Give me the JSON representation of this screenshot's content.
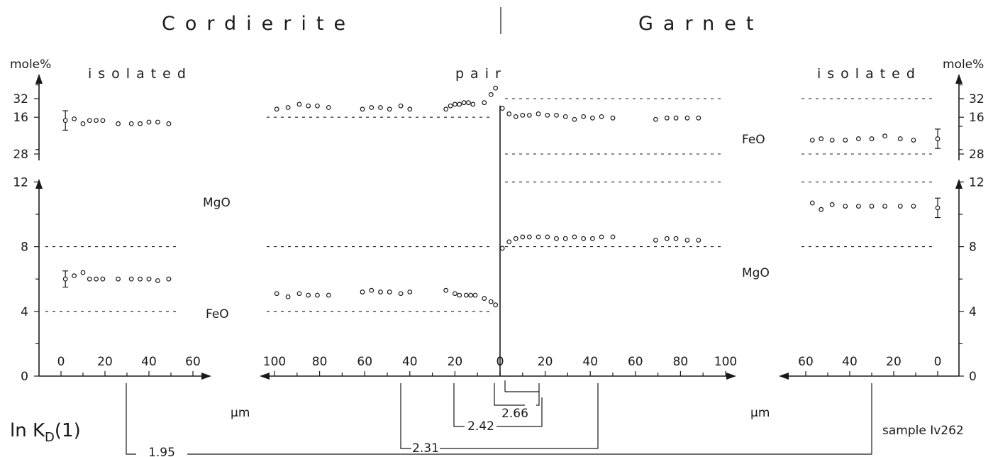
{
  "chart_data": {
    "type": "scatter",
    "title_left": "Cordierite",
    "title_right": "Garnet",
    "sample_label": "sample Iv262",
    "yunit": "mole%",
    "xunit": "µm",
    "yticks_upper": [
      "32",
      "28"
    ],
    "yticks_lower": [
      "16",
      "12",
      "8",
      "4",
      "0"
    ],
    "lnkd_label": {
      "main": "ln K",
      "sub": "D",
      "tail": "(1)"
    },
    "panels": [
      {
        "id": "crd-isolated",
        "title": "isolated",
        "xlim": [
          0,
          60
        ],
        "xticks": [
          "0",
          "20",
          "40",
          "60"
        ],
        "series": [
          {
            "name": "MgO",
            "x": [
              2,
              6,
              10,
              13,
              16,
              19,
              26,
              32,
              36,
              40,
              44,
              49
            ],
            "y": [
              15.8,
              15.9,
              15.6,
              15.8,
              15.8,
              15.8,
              15.6,
              15.6,
              15.6,
              15.7,
              15.7,
              15.6
            ],
            "error_bar_at": 2,
            "error": 0.6
          },
          {
            "name": "FeO",
            "x": [
              2,
              6,
              10,
              13,
              16,
              19,
              26,
              32,
              36,
              40,
              44,
              49
            ],
            "y": [
              6.0,
              6.2,
              6.4,
              6.0,
              6.0,
              6.0,
              6.0,
              6.0,
              6.0,
              6.0,
              5.9,
              6.0
            ],
            "error_bar_at": 2,
            "error": 0.5
          }
        ],
        "ref_lines": [
          8,
          4
        ]
      },
      {
        "id": "crd-pair",
        "title": "pair",
        "xlim": [
          100,
          0
        ],
        "xticks": [
          "100",
          "80",
          "60",
          "40",
          "20",
          "0"
        ],
        "series": [
          {
            "name": "MgO",
            "x": [
              99,
              94,
              89,
              85,
              81,
              76,
              61,
              57,
              53,
              49,
              44,
              40,
              24,
              22,
              20,
              18,
              16,
              14,
              12,
              7,
              4,
              2
            ],
            "y": [
              16.5,
              16.6,
              16.8,
              16.7,
              16.7,
              16.6,
              16.5,
              16.6,
              16.6,
              16.5,
              16.7,
              16.5,
              16.5,
              16.7,
              16.8,
              16.8,
              16.9,
              16.9,
              16.8,
              16.9,
              17.4,
              17.8
            ]
          },
          {
            "name": "FeO",
            "x": [
              99,
              94,
              89,
              85,
              81,
              76,
              61,
              57,
              53,
              49,
              44,
              40,
              24,
              20,
              18,
              15,
              13,
              11,
              7,
              4,
              2
            ],
            "y": [
              5.1,
              4.9,
              5.1,
              5.0,
              5.0,
              5.0,
              5.2,
              5.3,
              5.2,
              5.2,
              5.1,
              5.2,
              5.3,
              5.1,
              5.0,
              5.0,
              5.0,
              5.0,
              4.8,
              4.6,
              4.4
            ]
          }
        ],
        "ref_lines": [
          16,
          8,
          4
        ]
      },
      {
        "id": "grt-pair",
        "title": "",
        "xlim": [
          0,
          100
        ],
        "xticks": [
          "0",
          "20",
          "40",
          "60",
          "80",
          "100"
        ],
        "series": [
          {
            "name": "FeO",
            "x": [
              1,
              4,
              7,
              10,
              13,
              17,
              21,
              25,
              29,
              33,
              37,
              41,
              45,
              50,
              69,
              74,
              78,
              83,
              88
            ],
            "y": [
              31.3,
              30.9,
              30.7,
              30.8,
              30.8,
              30.9,
              30.8,
              30.8,
              30.7,
              30.5,
              30.7,
              30.6,
              30.7,
              30.6,
              30.5,
              30.6,
              30.6,
              30.6,
              30.6
            ]
          },
          {
            "name": "MgO",
            "x": [
              1,
              4,
              7,
              10,
              13,
              17,
              21,
              25,
              29,
              33,
              37,
              41,
              45,
              50,
              69,
              74,
              78,
              83,
              88
            ],
            "y": [
              7.9,
              8.3,
              8.5,
              8.6,
              8.6,
              8.6,
              8.6,
              8.5,
              8.5,
              8.6,
              8.5,
              8.5,
              8.6,
              8.6,
              8.4,
              8.5,
              8.5,
              8.4,
              8.4
            ]
          }
        ],
        "ref_lines": [
          32,
          28,
          12,
          8
        ],
        "labels": [
          "FeO",
          "MgO"
        ]
      },
      {
        "id": "grt-isolated",
        "title": "isolated",
        "xlim": [
          60,
          0
        ],
        "xticks": [
          "60",
          "40",
          "20",
          "0"
        ],
        "series": [
          {
            "name": "FeO",
            "x": [
              57,
              53,
              48,
              42,
              36,
              30,
              24,
              17,
              11,
              0
            ],
            "y": [
              29.0,
              29.1,
              29.0,
              29.0,
              29.1,
              29.1,
              29.3,
              29.1,
              29.0,
              29.1
            ],
            "error_bar_at": 0,
            "error": 0.7
          },
          {
            "name": "MgO",
            "x": [
              57,
              53,
              48,
              42,
              36,
              30,
              24,
              17,
              11,
              0
            ],
            "y": [
              10.7,
              10.3,
              10.6,
              10.5,
              10.5,
              10.5,
              10.5,
              10.5,
              10.5,
              10.4
            ],
            "error_bar_at": 0,
            "error": 0.6
          }
        ],
        "ref_lines": [
          32,
          28,
          12,
          8
        ]
      }
    ],
    "kd_brackets": [
      {
        "value": "2.66",
        "crd_um": 0,
        "grt_um": 2
      },
      {
        "value": "2.42",
        "crd_um": 20,
        "grt_um": 20
      },
      {
        "value": "2.31",
        "crd_um": 43,
        "grt_um": 45
      },
      {
        "value": "1.95",
        "crd_um": 30,
        "grt_um": 30
      }
    ]
  }
}
